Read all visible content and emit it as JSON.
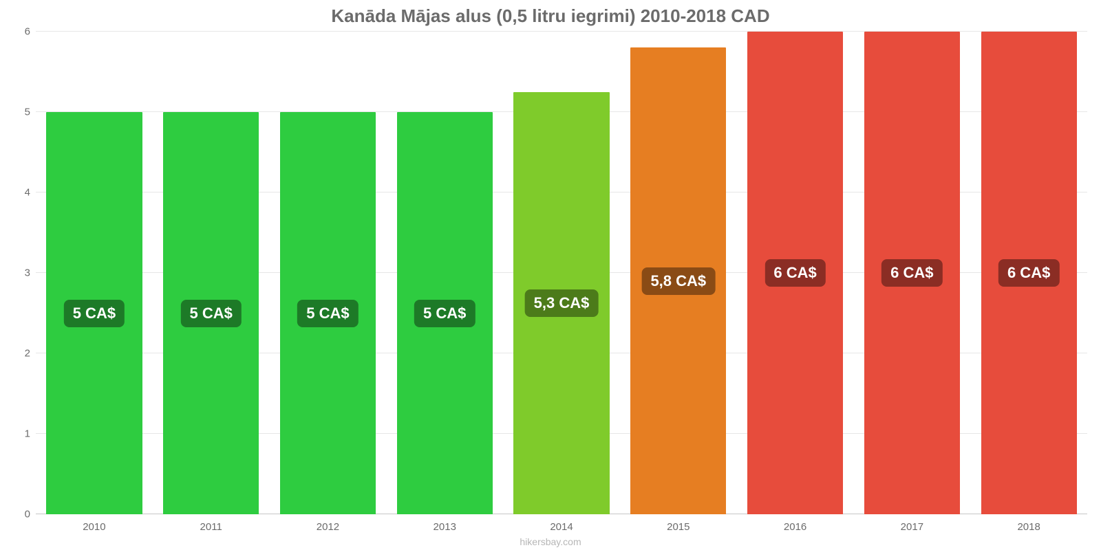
{
  "chart": {
    "type": "bar",
    "title": "Kanāda Mājas alus (0,5 litru iegrimi) 2010-2018 CAD",
    "title_color": "#6b6b6b",
    "title_fontsize": 26,
    "background_color": "#ffffff",
    "grid_color": "#e6e6e6",
    "axis_color": "#c7c7c7",
    "tick_label_color": "#6b6b6b",
    "tick_label_fontsize": 15,
    "value_label_color": "#ffffff",
    "value_label_fontsize": 22,
    "attribution": "hikersbay.com",
    "attribution_color": "#b6b6b6",
    "ylim_min": 0,
    "ylim_max": 6,
    "ytick_step": 1,
    "yticks": [
      {
        "v": 0,
        "label": "0"
      },
      {
        "v": 1,
        "label": "1"
      },
      {
        "v": 2,
        "label": "2"
      },
      {
        "v": 3,
        "label": "3"
      },
      {
        "v": 4,
        "label": "4"
      },
      {
        "v": 5,
        "label": "5"
      },
      {
        "v": 6,
        "label": "6"
      }
    ],
    "bar_width_ratio": 0.82,
    "bars": [
      {
        "category": "2010",
        "value": 5.0,
        "display": "5 CA$",
        "fill": "#2ecc40",
        "badge_bg": "#1d7a27"
      },
      {
        "category": "2011",
        "value": 5.0,
        "display": "5 CA$",
        "fill": "#2ecc40",
        "badge_bg": "#1d7a27"
      },
      {
        "category": "2012",
        "value": 5.0,
        "display": "5 CA$",
        "fill": "#2ecc40",
        "badge_bg": "#1d7a27"
      },
      {
        "category": "2013",
        "value": 5.0,
        "display": "5 CA$",
        "fill": "#2ecc40",
        "badge_bg": "#1d7a27"
      },
      {
        "category": "2014",
        "value": 5.25,
        "display": "5,3 CA$",
        "fill": "#7fcb2b",
        "badge_bg": "#4c7b1a"
      },
      {
        "category": "2015",
        "value": 5.8,
        "display": "5,8 CA$",
        "fill": "#e67e22",
        "badge_bg": "#8a4b15"
      },
      {
        "category": "2016",
        "value": 6.0,
        "display": "6 CA$",
        "fill": "#e74c3c",
        "badge_bg": "#8b2d24"
      },
      {
        "category": "2017",
        "value": 6.0,
        "display": "6 CA$",
        "fill": "#e74c3c",
        "badge_bg": "#8b2d24"
      },
      {
        "category": "2018",
        "value": 6.0,
        "display": "6 CA$",
        "fill": "#e74c3c",
        "badge_bg": "#8b2d24"
      }
    ]
  }
}
